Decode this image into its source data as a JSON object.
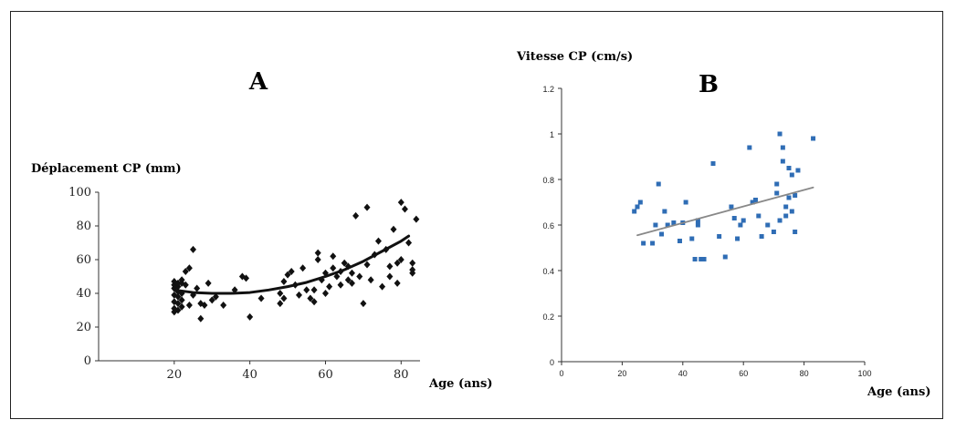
{
  "chart_data": [
    {
      "type": "scatter",
      "panel_label": "A",
      "ylabel": "Déplacement CP (mm)",
      "xlabel": "Age (ans)",
      "xlim": [
        0,
        85
      ],
      "ylim": [
        0,
        100
      ],
      "xticks": [
        20,
        40,
        60,
        80
      ],
      "yticks": [
        0,
        20,
        40,
        60,
        80,
        100
      ],
      "marker": "diamond",
      "point_color": "#111111",
      "trend_color": "#111111",
      "trend": {
        "type": "quadratic",
        "points": [
          [
            20,
            42
          ],
          [
            25,
            40.5
          ],
          [
            30,
            40
          ],
          [
            35,
            40
          ],
          [
            40,
            40.5
          ],
          [
            45,
            42
          ],
          [
            50,
            44
          ],
          [
            55,
            46.5
          ],
          [
            60,
            50
          ],
          [
            65,
            54
          ],
          [
            70,
            59
          ],
          [
            75,
            65
          ],
          [
            80,
            71
          ],
          [
            82,
            74
          ]
        ]
      },
      "points": [
        [
          20,
          29
        ],
        [
          20,
          31
        ],
        [
          20,
          35
        ],
        [
          20,
          39
        ],
        [
          20,
          43
        ],
        [
          20,
          45
        ],
        [
          20,
          47
        ],
        [
          21,
          30
        ],
        [
          21,
          34
        ],
        [
          21,
          38
        ],
        [
          21,
          41
        ],
        [
          21,
          44
        ],
        [
          21,
          46
        ],
        [
          22,
          32
        ],
        [
          22,
          36
        ],
        [
          22,
          40
        ],
        [
          22,
          46
        ],
        [
          22,
          48
        ],
        [
          23,
          45
        ],
        [
          23,
          53
        ],
        [
          24,
          55
        ],
        [
          24,
          33
        ],
        [
          25,
          66
        ],
        [
          25,
          39
        ],
        [
          26,
          43
        ],
        [
          27,
          25
        ],
        [
          27,
          34
        ],
        [
          28,
          33
        ],
        [
          29,
          46
        ],
        [
          30,
          36
        ],
        [
          31,
          38
        ],
        [
          33,
          33
        ],
        [
          36,
          42
        ],
        [
          38,
          50
        ],
        [
          39,
          49
        ],
        [
          40,
          26
        ],
        [
          43,
          37
        ],
        [
          48,
          34
        ],
        [
          48,
          40
        ],
        [
          49,
          37
        ],
        [
          49,
          47
        ],
        [
          50,
          51
        ],
        [
          51,
          53
        ],
        [
          52,
          45
        ],
        [
          53,
          39
        ],
        [
          54,
          55
        ],
        [
          55,
          42
        ],
        [
          56,
          37
        ],
        [
          57,
          35
        ],
        [
          57,
          42
        ],
        [
          58,
          64
        ],
        [
          58,
          60
        ],
        [
          59,
          48
        ],
        [
          60,
          40
        ],
        [
          60,
          52
        ],
        [
          61,
          44
        ],
        [
          62,
          62
        ],
        [
          62,
          55
        ],
        [
          63,
          50
        ],
        [
          64,
          53
        ],
        [
          64,
          45
        ],
        [
          65,
          58
        ],
        [
          66,
          48
        ],
        [
          66,
          56
        ],
        [
          67,
          52
        ],
        [
          67,
          46
        ],
        [
          68,
          86
        ],
        [
          69,
          50
        ],
        [
          70,
          34
        ],
        [
          71,
          57
        ],
        [
          71,
          91
        ],
        [
          72,
          48
        ],
        [
          73,
          63
        ],
        [
          74,
          71
        ],
        [
          75,
          44
        ],
        [
          76,
          66
        ],
        [
          77,
          50
        ],
        [
          77,
          56
        ],
        [
          78,
          78
        ],
        [
          79,
          58
        ],
        [
          79,
          46
        ],
        [
          80,
          94
        ],
        [
          80,
          60
        ],
        [
          81,
          90
        ],
        [
          82,
          70
        ],
        [
          83,
          54
        ],
        [
          83,
          58
        ],
        [
          83,
          52
        ],
        [
          84,
          84
        ]
      ]
    },
    {
      "type": "scatter",
      "panel_label": "B",
      "ylabel": "Vitesse CP (cm/s)",
      "xlabel": "Age (ans)",
      "xlim": [
        0,
        100
      ],
      "ylim": [
        0,
        1.2
      ],
      "xticks": [
        0,
        20,
        40,
        60,
        80,
        100
      ],
      "yticks": [
        0,
        0.2,
        0.4,
        0.6,
        0.8,
        1,
        1.2
      ],
      "ytick_labels": [
        "0",
        "0.2",
        "0.4",
        "0.6",
        "0.8",
        "1",
        "1.2"
      ],
      "marker": "square",
      "point_color": "#2f6db5",
      "trend_color": "#888888",
      "trend": {
        "type": "linear",
        "points": [
          [
            25,
            0.555
          ],
          [
            83,
            0.765
          ]
        ]
      },
      "points": [
        [
          24,
          0.66
        ],
        [
          25,
          0.68
        ],
        [
          26,
          0.7
        ],
        [
          27,
          0.52
        ],
        [
          30,
          0.52
        ],
        [
          31,
          0.6
        ],
        [
          32,
          0.78
        ],
        [
          33,
          0.56
        ],
        [
          34,
          0.66
        ],
        [
          35,
          0.6
        ],
        [
          37,
          0.61
        ],
        [
          39,
          0.53
        ],
        [
          40,
          0.61
        ],
        [
          41,
          0.7
        ],
        [
          43,
          0.54
        ],
        [
          44,
          0.45
        ],
        [
          45,
          0.6
        ],
        [
          45,
          0.62
        ],
        [
          46,
          0.45
        ],
        [
          47,
          0.45
        ],
        [
          50,
          0.87
        ],
        [
          52,
          0.55
        ],
        [
          54,
          0.46
        ],
        [
          56,
          0.68
        ],
        [
          57,
          0.63
        ],
        [
          58,
          0.54
        ],
        [
          59,
          0.6
        ],
        [
          60,
          0.62
        ],
        [
          62,
          0.94
        ],
        [
          63,
          0.7
        ],
        [
          64,
          0.71
        ],
        [
          65,
          0.64
        ],
        [
          66,
          0.55
        ],
        [
          68,
          0.6
        ],
        [
          70,
          0.57
        ],
        [
          71,
          0.74
        ],
        [
          71,
          0.78
        ],
        [
          72,
          1.0
        ],
        [
          72,
          0.62
        ],
        [
          73,
          0.94
        ],
        [
          73,
          0.88
        ],
        [
          74,
          0.68
        ],
        [
          74,
          0.64
        ],
        [
          75,
          0.85
        ],
        [
          75,
          0.72
        ],
        [
          76,
          0.66
        ],
        [
          76,
          0.82
        ],
        [
          77,
          0.73
        ],
        [
          77,
          0.57
        ],
        [
          78,
          0.84
        ],
        [
          83,
          0.98
        ]
      ]
    }
  ]
}
